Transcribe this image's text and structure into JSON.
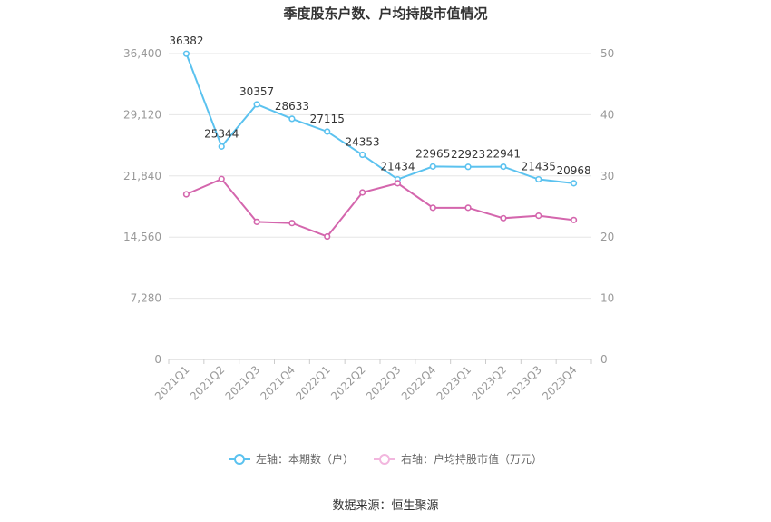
{
  "chart_data": {
    "type": "line",
    "title": "季度股东户数、户均持股市值情况",
    "categories": [
      "2021Q1",
      "2021Q2",
      "2021Q3",
      "2021Q4",
      "2022Q1",
      "2022Q2",
      "2022Q3",
      "2022Q4",
      "2023Q1",
      "2023Q2",
      "2023Q3",
      "2023Q4"
    ],
    "left_axis": {
      "ticks": [
        "0",
        "7,280",
        "14,560",
        "21,840",
        "29,120",
        "36,400"
      ],
      "ylim": [
        0,
        36400
      ]
    },
    "right_axis": {
      "ticks": [
        "0",
        "10",
        "20",
        "30",
        "40",
        "50"
      ],
      "ylim": [
        0,
        50
      ]
    },
    "grid": true,
    "legend_position": "bottom",
    "series": [
      {
        "name": "左轴：本期数（户）",
        "axis": "left",
        "color": "#5bc2ef",
        "values": [
          36382,
          25344,
          30357,
          28633,
          27115,
          24353,
          21434,
          22965,
          22923,
          22941,
          21435,
          20968
        ],
        "labels": [
          "36382",
          "25344",
          "30357",
          "28633",
          "27115",
          "24353",
          "21434",
          "22965",
          "22923",
          "22941",
          "21435",
          "20968"
        ]
      },
      {
        "name": "右轴：户均持股市值（万元）",
        "axis": "right",
        "color": "#d466ad",
        "values": [
          27.0,
          29.5,
          22.5,
          22.3,
          20.1,
          27.3,
          28.8,
          24.8,
          24.8,
          23.1,
          23.5,
          22.8
        ]
      }
    ]
  },
  "source": "数据来源：恒生聚源"
}
